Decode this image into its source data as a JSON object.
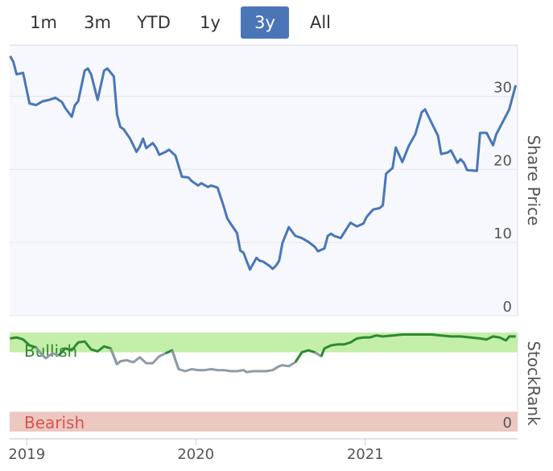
{
  "range_selector": {
    "buttons": [
      {
        "label": "1m",
        "active": false
      },
      {
        "label": "3m",
        "active": false
      },
      {
        "label": "YTD",
        "active": false
      },
      {
        "label": "1y",
        "active": false
      },
      {
        "label": "3y",
        "active": true
      },
      {
        "label": "All",
        "active": false
      }
    ]
  },
  "colors": {
    "price_line": "#4a76b8",
    "bullish_zone": "#c3efa9",
    "bearish_zone": "#ecc8c0",
    "bullish_text": "#2e8b2e",
    "bearish_text": "#d9534f",
    "rank_bullish_line": "#2e8b2e",
    "rank_neutral_line": "#8f9aa8",
    "grid": "#e6e6e6",
    "plot_bg": "#f6f8fd"
  },
  "chart_data": [
    {
      "type": "line",
      "ylabel": "Share Price",
      "ylim": [
        0,
        37
      ],
      "yticks": [
        "0",
        "10",
        "20",
        "30"
      ],
      "xticks": [
        "2019",
        "2020",
        "2021"
      ],
      "xlim": [
        "2018-11-25",
        "2021-11-26"
      ],
      "grid": true,
      "series": [
        {
          "x": [
            "2018-11-26",
            "2018-12-03",
            "2018-12-10",
            "2018-12-24",
            "2019-01-07",
            "2019-01-21",
            "2019-02-04",
            "2019-02-18",
            "2019-03-04",
            "2019-03-18",
            "2019-03-25",
            "2019-04-08",
            "2019-04-15",
            "2019-04-22",
            "2019-05-06",
            "2019-05-13",
            "2019-05-20",
            "2019-06-03",
            "2019-06-17",
            "2019-06-24",
            "2019-07-08",
            "2019-07-15",
            "2019-07-22",
            "2019-07-29",
            "2019-08-12",
            "2019-08-26",
            "2019-09-02",
            "2019-09-09",
            "2019-09-16",
            "2019-09-30",
            "2019-10-07",
            "2019-10-14",
            "2019-10-28",
            "2019-11-04",
            "2019-11-18",
            "2019-12-02",
            "2019-12-16",
            "2019-12-23",
            "2020-01-06",
            "2020-01-13",
            "2020-01-27",
            "2020-02-03",
            "2020-02-17",
            "2020-03-02",
            "2020-03-09",
            "2020-03-16",
            "2020-03-30",
            "2020-04-06",
            "2020-04-13",
            "2020-04-27",
            "2020-05-11",
            "2020-05-18",
            "2020-05-25",
            "2020-06-08",
            "2020-06-15",
            "2020-06-22",
            "2020-06-29",
            "2020-07-06",
            "2020-07-20",
            "2020-08-03",
            "2020-08-17",
            "2020-08-31",
            "2020-09-14",
            "2020-09-21",
            "2020-10-05",
            "2020-10-12",
            "2020-10-19",
            "2020-10-26",
            "2020-11-09",
            "2020-11-23",
            "2020-11-30",
            "2020-12-14",
            "2020-12-28",
            "2021-01-04",
            "2021-01-18",
            "2021-02-01",
            "2021-02-08",
            "2021-02-15",
            "2021-03-01",
            "2021-03-08",
            "2021-03-22",
            "2021-04-05",
            "2021-04-19",
            "2021-05-03",
            "2021-05-10",
            "2021-05-17",
            "2021-06-07",
            "2021-06-14",
            "2021-06-28",
            "2021-07-05",
            "2021-07-19",
            "2021-07-26",
            "2021-08-02",
            "2021-08-09",
            "2021-08-30",
            "2021-09-06",
            "2021-09-20",
            "2021-10-04",
            "2021-10-11",
            "2021-10-25",
            "2021-11-08",
            "2021-11-22"
          ],
          "y": [
            35.5,
            34.7,
            33,
            33.2,
            29,
            28.8,
            29.3,
            29.5,
            29.8,
            29.2,
            28.4,
            27.2,
            28.8,
            29.3,
            33.5,
            33.8,
            33,
            29.5,
            33.5,
            33.8,
            32.7,
            27.5,
            25.8,
            25.5,
            24.2,
            22.4,
            23.1,
            24.2,
            22.9,
            23.6,
            23.0,
            22.0,
            22.4,
            22.7,
            21.9,
            19.0,
            18.9,
            18.4,
            17.8,
            18.1,
            17.6,
            17.8,
            17.5,
            14.8,
            13.3,
            12.6,
            11.3,
            8.9,
            8.6,
            6.3,
            7.9,
            7.5,
            7.4,
            6.8,
            6.4,
            6.8,
            7.5,
            9.9,
            12.1,
            10.9,
            10.6,
            10.1,
            9.4,
            8.8,
            9.2,
            10.9,
            11.2,
            10.9,
            10.6,
            12.0,
            12.7,
            12.2,
            12.6,
            13.5,
            14.5,
            14.7,
            15.1,
            19.4,
            20.2,
            23.0,
            21.0,
            23.2,
            24.8,
            27.8,
            28.2,
            27.3,
            24.6,
            22.1,
            22.3,
            22.6,
            20.9,
            21.4,
            20.9,
            19.9,
            19.8,
            25.0,
            25.0,
            23.3,
            24.8,
            26.5,
            28.2,
            31.5
          ]
        }
      ]
    },
    {
      "type": "line",
      "ylabel": "StockRank",
      "yticks": [
        "0"
      ],
      "xticks": [
        "2019",
        "2020",
        "2021"
      ],
      "xlim": [
        "2018-11-25",
        "2021-11-26"
      ],
      "ylim": [
        0,
        100
      ],
      "zones": [
        {
          "label": "Bullish",
          "from": 80,
          "to": 100
        },
        {
          "label": "Bearish",
          "from": 0,
          "to": 20
        }
      ],
      "series": [
        {
          "x": [
            "2018-11-26",
            "2018-12-10",
            "2018-12-24",
            "2019-01-07",
            "2019-01-21",
            "2019-02-04",
            "2019-02-11",
            "2019-02-25",
            "2019-03-11",
            "2019-03-25",
            "2019-04-08",
            "2019-04-22",
            "2019-05-06",
            "2019-05-20",
            "2019-06-03",
            "2019-06-17",
            "2019-07-01",
            "2019-07-15",
            "2019-07-22",
            "2019-08-05",
            "2019-08-19",
            "2019-09-02",
            "2019-09-16",
            "2019-09-30",
            "2019-10-14",
            "2019-10-28",
            "2019-11-11",
            "2019-11-25",
            "2019-12-09",
            "2019-12-23",
            "2020-01-06",
            "2020-01-20",
            "2020-02-03",
            "2020-02-17",
            "2020-03-02",
            "2020-03-16",
            "2020-03-30",
            "2020-04-13",
            "2020-04-20",
            "2020-05-04",
            "2020-05-18",
            "2020-06-01",
            "2020-06-15",
            "2020-06-29",
            "2020-07-06",
            "2020-07-20",
            "2020-08-03",
            "2020-08-17",
            "2020-08-31",
            "2020-09-14",
            "2020-09-28",
            "2020-10-05",
            "2020-10-19",
            "2020-11-02",
            "2020-11-16",
            "2020-11-30",
            "2020-12-14",
            "2020-12-28",
            "2021-01-11",
            "2021-01-25",
            "2021-02-08",
            "2021-03-01",
            "2021-03-22",
            "2021-04-12",
            "2021-05-03",
            "2021-05-24",
            "2021-06-14",
            "2021-07-05",
            "2021-07-26",
            "2021-08-16",
            "2021-09-06",
            "2021-09-20",
            "2021-10-04",
            "2021-10-18",
            "2021-11-01",
            "2021-11-08",
            "2021-11-22"
          ],
          "y": [
            94,
            95,
            93,
            87,
            85,
            77,
            74,
            79,
            77,
            84,
            82,
            90,
            91,
            83,
            81,
            86,
            84,
            68,
            71,
            72,
            70,
            75,
            69,
            69,
            76,
            79,
            82,
            63,
            61,
            63,
            62,
            62,
            63,
            62,
            62,
            61,
            61,
            62,
            60,
            61,
            61,
            61,
            62,
            66,
            67,
            66,
            70,
            80,
            82,
            80,
            76,
            84,
            87,
            88,
            88,
            90,
            94,
            95,
            95,
            97,
            96,
            97,
            98,
            98,
            98,
            98,
            97,
            96,
            96,
            95,
            94,
            93,
            96,
            95,
            92,
            96,
            96
          ]
        }
      ]
    }
  ]
}
